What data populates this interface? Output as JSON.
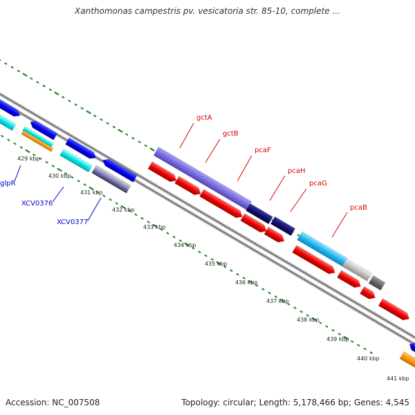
{
  "title": "Xanthomonas campestris pv. vesicatoria str. 85-10, complete ...",
  "footer": {
    "accession": "Accession: NC_007508",
    "topology": "Topology: circular; Length: 5,178,466 bp; Genes: 4,545"
  },
  "colors": {
    "backbone": "#7f7f7f",
    "tick": "#2e8b2e",
    "label_red": "#dd0000",
    "label_blue": "#0000cc"
  },
  "position_labels": [
    "429 kbp",
    "430 kbp",
    "431 kbp",
    "432 kbp",
    "433 kbp",
    "434 kbp",
    "435 kbp",
    "436 kbp",
    "437 kbp",
    "438 kbp",
    "439 kbp",
    "440 kbp",
    "441 kbp"
  ],
  "gene_labels": [
    {
      "name": "gctA",
      "color": "#dd0000"
    },
    {
      "name": "gctB",
      "color": "#dd0000"
    },
    {
      "name": "pcaF",
      "color": "#dd0000"
    },
    {
      "name": "pcaH",
      "color": "#dd0000"
    },
    {
      "name": "pcaG",
      "color": "#dd0000"
    },
    {
      "name": "pcaB",
      "color": "#dd0000"
    },
    {
      "name": "glpR",
      "color": "#0000cc"
    },
    {
      "name": "XCV0376",
      "color": "#0000cc"
    },
    {
      "name": "XCV0377",
      "color": "#0000cc"
    }
  ]
}
